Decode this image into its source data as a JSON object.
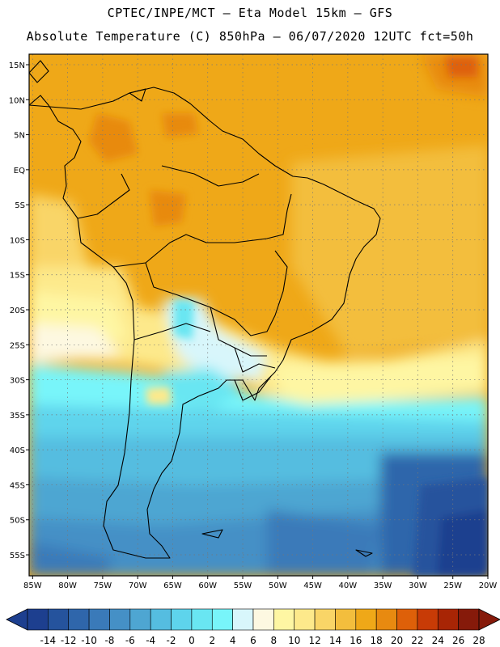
{
  "header": {
    "line1": "CPTEC/INPE/MCT –  Eta Model 15km – GFS",
    "line2": "Absolute Temperature (C) 850hPa – 06/07/2020 12UTC fct=50h"
  },
  "map": {
    "lat_labels": [
      "15N",
      "10N",
      "5N",
      "EQ",
      "5S",
      "10S",
      "15S",
      "20S",
      "25S",
      "30S",
      "35S",
      "40S",
      "45S",
      "50S",
      "55S"
    ],
    "lat_values": [
      15,
      10,
      5,
      0,
      -5,
      -10,
      -15,
      -20,
      -25,
      -30,
      -35,
      -40,
      -45,
      -50,
      -55
    ],
    "lon_labels": [
      "85W",
      "80W",
      "75W",
      "70W",
      "65W",
      "60W",
      "55W",
      "50W",
      "45W",
      "40W",
      "35W",
      "30W",
      "25W",
      "20W"
    ],
    "lon_values": [
      -85,
      -80,
      -75,
      -70,
      -65,
      -60,
      -55,
      -50,
      -45,
      -40,
      -35,
      -30,
      -25,
      -20
    ],
    "lon_range": [
      -85.5,
      -20
    ],
    "lat_range": [
      -58,
      16.5
    ]
  },
  "colorbar": {
    "labels": [
      "-14",
      "-12",
      "-10",
      "-8",
      "-6",
      "-4",
      "-2",
      "0",
      "2",
      "4",
      "6",
      "8",
      "10",
      "12",
      "14",
      "16",
      "18",
      "20",
      "22",
      "24",
      "26",
      "28"
    ],
    "colors": [
      "#1d3f8f",
      "#25539d",
      "#2f66ab",
      "#3a7ab9",
      "#4590c6",
      "#4ea6d2",
      "#55bde0",
      "#5ed4ec",
      "#69e6f2",
      "#78f5fa",
      "#d8f6fb",
      "#fdf8e1",
      "#fef6a3",
      "#fde98b",
      "#f9d567",
      "#f3be3d",
      "#efa818",
      "#e88a10",
      "#de6009",
      "#c83b06",
      "#a82505",
      "#861a0a"
    ]
  }
}
